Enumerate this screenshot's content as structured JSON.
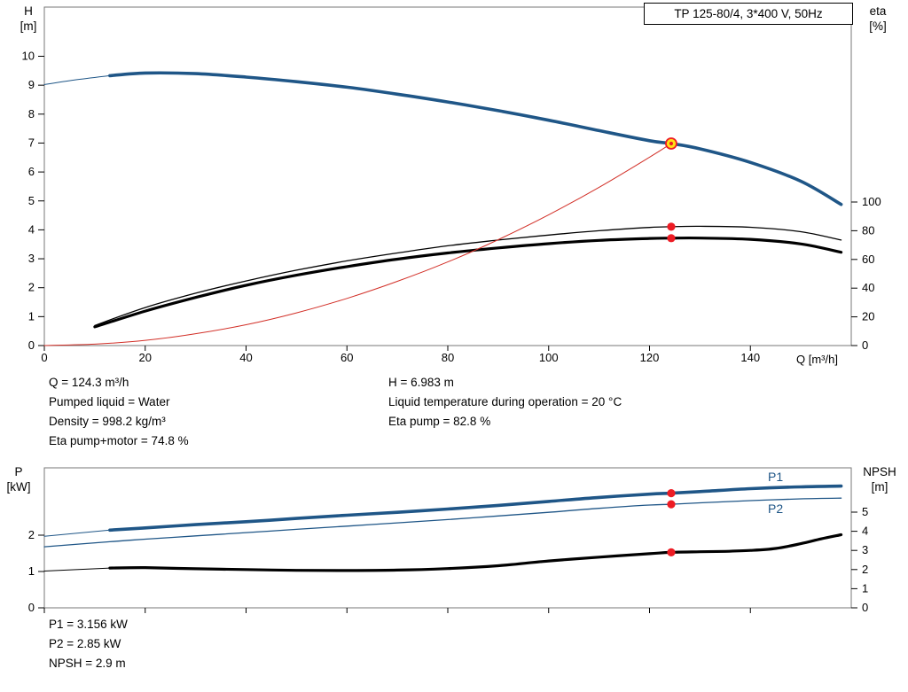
{
  "readouts": {
    "q": "Q = 124.3 m³/h",
    "h": "H = 6.983 m",
    "pumped_liquid": "Pumped liquid = Water",
    "liquid_temp": "Liquid temperature during operation = 20 °C",
    "density": "Density = 998.2 kg/m³",
    "eta_pump": "Eta pump = 82.8 %",
    "eta_pump_motor": "Eta pump+motor = 74.8 %",
    "p1": "P1 = 3.156 kW",
    "p2": "P2 = 2.85 kW",
    "npsh": "NPSH = 2.9 m"
  },
  "colors": {
    "curve_blue": "#1f5687",
    "curve_black": "#000000",
    "system_red": "#d22f27",
    "marker_red": "#ed1c24",
    "duty_yellow": "#ffe014",
    "axis_gray": "#777777",
    "tick_black": "#000000"
  },
  "chart_data": [
    {
      "id": "head-chart",
      "type": "line",
      "title": "TP 125-80/4, 3*400 V, 50Hz",
      "xlabel": "Q [m³/h]",
      "ylabel_left": [
        "H",
        "[m]"
      ],
      "ylabel_right": [
        "eta",
        "[%]"
      ],
      "xlim": [
        0,
        160
      ],
      "ylim_left": [
        0,
        11.7
      ],
      "ylim_right": [
        0,
        100
      ],
      "x_ticks": [
        0,
        20,
        40,
        60,
        80,
        100,
        120,
        140
      ],
      "y_ticks_left": [
        0,
        1,
        2,
        3,
        4,
        5,
        6,
        7,
        8,
        9,
        10
      ],
      "y_ticks_right": [
        0,
        20,
        40,
        60,
        80,
        100
      ],
      "grid": false,
      "series": [
        {
          "name": "pump-curve-leadin",
          "axis": "left",
          "color": "#1f5687",
          "width": 1,
          "points": [
            [
              0,
              9.02
            ],
            [
              6,
              9.18
            ],
            [
              13,
              9.33
            ]
          ]
        },
        {
          "name": "pump-curve",
          "axis": "left",
          "color": "#1f5687",
          "width": 3.6,
          "points": [
            [
              13,
              9.33
            ],
            [
              20,
              9.42
            ],
            [
              30,
              9.4
            ],
            [
              40,
              9.28
            ],
            [
              50,
              9.12
            ],
            [
              60,
              8.93
            ],
            [
              70,
              8.69
            ],
            [
              80,
              8.42
            ],
            [
              90,
              8.12
            ],
            [
              100,
              7.79
            ],
            [
              110,
              7.43
            ],
            [
              120,
              7.08
            ],
            [
              124.3,
              6.983
            ],
            [
              130,
              6.8
            ],
            [
              140,
              6.33
            ],
            [
              150,
              5.68
            ],
            [
              158,
              4.88
            ]
          ]
        },
        {
          "name": "eta-pump-curve",
          "axis": "right",
          "color": "#000000",
          "width": 1.3,
          "points": [
            [
              10,
              14
            ],
            [
              20,
              26.5
            ],
            [
              30,
              36.5
            ],
            [
              40,
              45
            ],
            [
              50,
              52.5
            ],
            [
              60,
              59
            ],
            [
              70,
              64.5
            ],
            [
              80,
              69.5
            ],
            [
              90,
              73.5
            ],
            [
              100,
              77
            ],
            [
              110,
              80
            ],
            [
              120,
              82.3
            ],
            [
              124.3,
              82.8
            ],
            [
              130,
              83.1
            ],
            [
              140,
              82.4
            ],
            [
              150,
              79.3
            ],
            [
              158,
              73.5
            ]
          ]
        },
        {
          "name": "eta-pump-motor-curve",
          "axis": "right",
          "color": "#000000",
          "width": 3.2,
          "points": [
            [
              10,
              13
            ],
            [
              20,
              24
            ],
            [
              30,
              33.5
            ],
            [
              40,
              42
            ],
            [
              50,
              49
            ],
            [
              60,
              55
            ],
            [
              70,
              60.2
            ],
            [
              80,
              64.5
            ],
            [
              90,
              68
            ],
            [
              100,
              71
            ],
            [
              110,
              73.3
            ],
            [
              120,
              74.6
            ],
            [
              124.3,
              74.8
            ],
            [
              130,
              74.9
            ],
            [
              140,
              74
            ],
            [
              150,
              70.8
            ],
            [
              158,
              65
            ]
          ]
        },
        {
          "name": "system-curve",
          "axis": "left",
          "color": "#d22f27",
          "width": 1,
          "points": [
            [
              0,
              0
            ],
            [
              10,
              0.05
            ],
            [
              20,
              0.18
            ],
            [
              30,
              0.41
            ],
            [
              40,
              0.72
            ],
            [
              50,
              1.13
            ],
            [
              60,
              1.63
            ],
            [
              70,
              2.22
            ],
            [
              80,
              2.89
            ],
            [
              90,
              3.66
            ],
            [
              100,
              4.52
            ],
            [
              110,
              5.47
            ],
            [
              120,
              6.51
            ],
            [
              124.3,
              6.983
            ]
          ]
        }
      ],
      "markers": [
        {
          "name": "duty-point",
          "axis": "left",
          "x": 124.3,
          "y": 6.983,
          "style": "duty"
        },
        {
          "name": "eta-pump-point",
          "axis": "right",
          "x": 124.3,
          "y": 82.8,
          "style": "dot"
        },
        {
          "name": "eta-pump-motor-point",
          "axis": "right",
          "x": 124.3,
          "y": 74.8,
          "style": "dot"
        }
      ]
    },
    {
      "id": "power-chart",
      "type": "line",
      "title": "",
      "xlabel": "",
      "ylabel_left": [
        "P",
        "[kW]"
      ],
      "ylabel_right": [
        "NPSH",
        "[m]"
      ],
      "xlim": [
        0,
        160
      ],
      "ylim_left": [
        0,
        3.85
      ],
      "ylim_right": [
        0,
        7.3
      ],
      "x_ticks": [
        0,
        20,
        40,
        60,
        80,
        100,
        120,
        140
      ],
      "y_ticks_left": [
        0,
        1,
        2
      ],
      "y_ticks_right": [
        0,
        1,
        2,
        3,
        4,
        5
      ],
      "grid": false,
      "legend": {
        "p1": "P1",
        "p2": "P2"
      },
      "series": [
        {
          "name": "p1-curve-leadin",
          "axis": "left",
          "color": "#1f5687",
          "width": 1,
          "points": [
            [
              0,
              1.97
            ],
            [
              13,
              2.14
            ]
          ]
        },
        {
          "name": "p1-curve",
          "axis": "left",
          "color": "#1f5687",
          "width": 3.6,
          "points": [
            [
              13,
              2.14
            ],
            [
              20,
              2.2
            ],
            [
              30,
              2.29
            ],
            [
              40,
              2.37
            ],
            [
              50,
              2.46
            ],
            [
              60,
              2.55
            ],
            [
              70,
              2.63
            ],
            [
              80,
              2.72
            ],
            [
              90,
              2.82
            ],
            [
              100,
              2.93
            ],
            [
              110,
              3.04
            ],
            [
              120,
              3.13
            ],
            [
              124.3,
              3.156
            ],
            [
              130,
              3.2
            ],
            [
              140,
              3.28
            ],
            [
              150,
              3.33
            ],
            [
              158,
              3.35
            ]
          ]
        },
        {
          "name": "p2-curve",
          "axis": "left",
          "color": "#1f5687",
          "width": 1.3,
          "points": [
            [
              0,
              1.68
            ],
            [
              13,
              1.82
            ],
            [
              20,
              1.89
            ],
            [
              30,
              1.98
            ],
            [
              40,
              2.07
            ],
            [
              50,
              2.16
            ],
            [
              60,
              2.25
            ],
            [
              70,
              2.34
            ],
            [
              80,
              2.43
            ],
            [
              90,
              2.53
            ],
            [
              100,
              2.63
            ],
            [
              110,
              2.74
            ],
            [
              120,
              2.83
            ],
            [
              124.3,
              2.85
            ],
            [
              130,
              2.89
            ],
            [
              140,
              2.95
            ],
            [
              150,
              3.0
            ],
            [
              158,
              3.02
            ]
          ]
        },
        {
          "name": "npsh-curve-leadin",
          "axis": "right",
          "color": "#000000",
          "width": 1,
          "points": [
            [
              0,
              1.92
            ],
            [
              13,
              2.08
            ]
          ]
        },
        {
          "name": "npsh-curve",
          "axis": "right",
          "color": "#000000",
          "width": 3.2,
          "points": [
            [
              13,
              2.08
            ],
            [
              20,
              2.1
            ],
            [
              30,
              2.04
            ],
            [
              40,
              2.0
            ],
            [
              50,
              1.96
            ],
            [
              60,
              1.95
            ],
            [
              70,
              1.97
            ],
            [
              80,
              2.05
            ],
            [
              90,
              2.2
            ],
            [
              100,
              2.45
            ],
            [
              110,
              2.65
            ],
            [
              120,
              2.83
            ],
            [
              124.3,
              2.9
            ],
            [
              130,
              2.93
            ],
            [
              135,
              2.95
            ],
            [
              140,
              3.0
            ],
            [
              145,
              3.1
            ],
            [
              150,
              3.35
            ],
            [
              154,
              3.6
            ],
            [
              158,
              3.82
            ]
          ]
        }
      ],
      "markers": [
        {
          "name": "p1-point",
          "axis": "left",
          "x": 124.3,
          "y": 3.156,
          "style": "dot"
        },
        {
          "name": "p2-point",
          "axis": "left",
          "x": 124.3,
          "y": 2.85,
          "style": "dot"
        },
        {
          "name": "npsh-point",
          "axis": "right",
          "x": 124.3,
          "y": 2.9,
          "style": "dot"
        }
      ]
    }
  ]
}
